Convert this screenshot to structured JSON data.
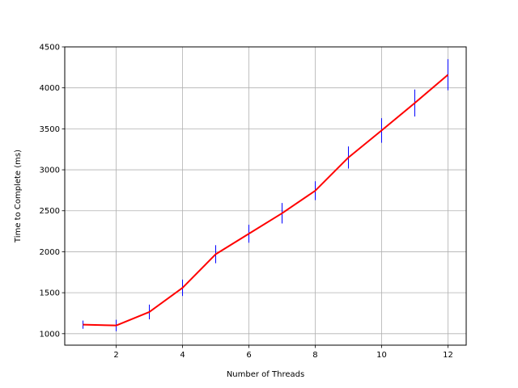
{
  "chart_data": {
    "type": "line",
    "title": "",
    "xlabel": "Number of Threads",
    "ylabel": "Time to Complete (ms)",
    "xlim": [
      0.45,
      12.55
    ],
    "ylim": [
      860,
      4500
    ],
    "xticks": [
      2,
      4,
      6,
      8,
      10,
      12
    ],
    "yticks": [
      1000,
      1500,
      2000,
      2500,
      3000,
      3500,
      4000,
      4500
    ],
    "grid": true,
    "colors": {
      "line": "#ff0000",
      "error_bars": "#0000ff",
      "grid": "#b0b0b0"
    },
    "series": [
      {
        "x": [
          1,
          2,
          3,
          4,
          5,
          6,
          7,
          8,
          9,
          10,
          11,
          12
        ],
        "y": [
          1110,
          1100,
          1265,
          1560,
          1970,
          2220,
          2470,
          2745,
          3150,
          3480,
          3815,
          4160
        ],
        "error": [
          50,
          70,
          90,
          100,
          110,
          110,
          125,
          115,
          135,
          150,
          165,
          190
        ]
      }
    ]
  }
}
